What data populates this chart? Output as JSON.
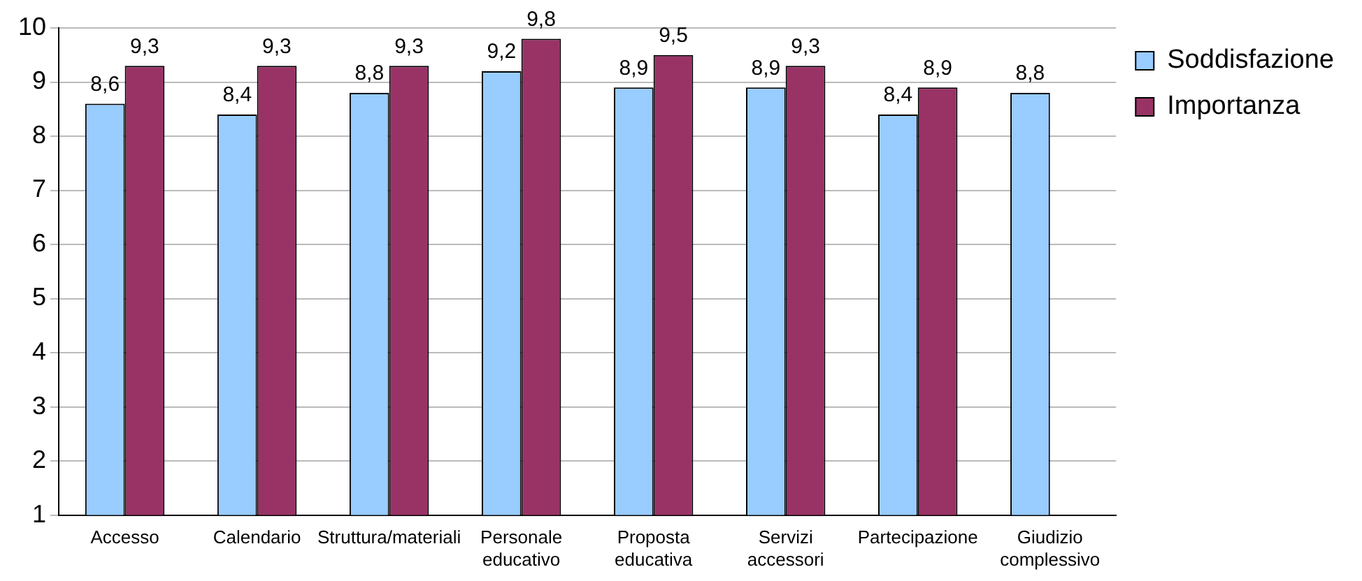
{
  "chart_data": {
    "type": "bar",
    "categories": [
      "Accesso",
      "Calendario",
      "Struttura/materiali",
      "Personale educativo",
      "Proposta educativa",
      "Servizi accessori",
      "Partecipazione",
      "Giudizio complessivo"
    ],
    "series": [
      {
        "name": "Soddisfazione",
        "color": "#99ccff",
        "values": [
          8.6,
          8.4,
          8.8,
          9.2,
          8.9,
          8.9,
          8.4,
          8.8
        ],
        "value_labels": [
          "8,6",
          "8,4",
          "8,8",
          "9,2",
          "8,9",
          "8,9",
          "8,4",
          "8,8"
        ]
      },
      {
        "name": "Importanza",
        "color": "#993366",
        "values": [
          9.3,
          9.3,
          9.3,
          9.8,
          9.5,
          9.3,
          8.9,
          null
        ],
        "value_labels": [
          "9,3",
          "9,3",
          "9,3",
          "9,8",
          "9,5",
          "9,3",
          "8,9",
          null
        ]
      }
    ],
    "ylim": [
      1,
      10
    ],
    "yticks": [
      1,
      2,
      3,
      4,
      5,
      6,
      7,
      8,
      9,
      10
    ],
    "grid": "y",
    "legend": "top right"
  }
}
